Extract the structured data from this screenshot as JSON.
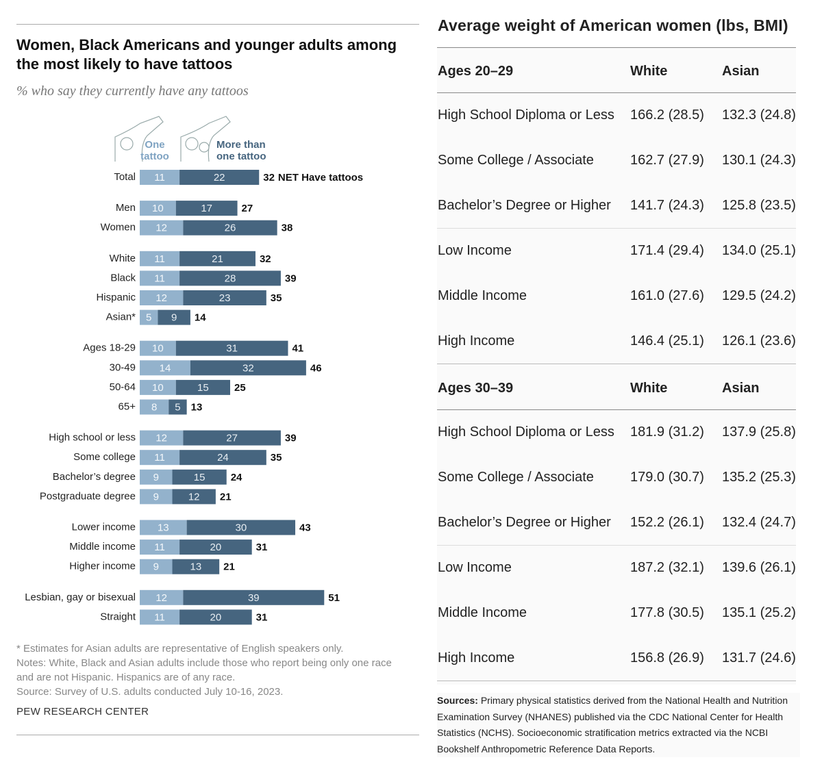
{
  "chart_data": {
    "type": "bar",
    "orientation": "horizontal",
    "stacked": true,
    "title": "Women, Black Americans and younger adults among the most likely to have tattoos",
    "subtitle": "% who say they currently have any tattoos",
    "categories": [
      "Total",
      "Men",
      "Women",
      "White",
      "Black",
      "Hispanic",
      "Asian*",
      "Ages 18-29",
      "30-49",
      "50-64",
      "65+",
      "High school or less",
      "Some college",
      "Bachelor’s degree",
      "Postgraduate degree",
      "Lower income",
      "Middle income",
      "Higher income",
      "Lesbian, gay or bisexual",
      "Straight"
    ],
    "series": [
      {
        "name": "One tattoo",
        "color": "#93b2cc",
        "values": [
          11,
          10,
          12,
          11,
          11,
          12,
          5,
          10,
          14,
          10,
          8,
          12,
          11,
          9,
          9,
          13,
          11,
          9,
          12,
          11
        ]
      },
      {
        "name": "More than one tattoo",
        "color": "#46657f",
        "values": [
          22,
          17,
          26,
          21,
          28,
          23,
          9,
          31,
          32,
          15,
          5,
          27,
          24,
          15,
          12,
          30,
          20,
          13,
          39,
          20
        ]
      }
    ],
    "totals": [
      32,
      27,
      38,
      32,
      39,
      35,
      14,
      41,
      46,
      25,
      13,
      39,
      35,
      24,
      21,
      43,
      31,
      21,
      51,
      31
    ],
    "total_annotation": "NET Have tattoos",
    "notes": [
      "* Estimates for Asian adults are representative of English speakers only.",
      "Notes: White, Black and Asian adults include those who report being only one race and are not Hispanic. Hispanics are of any race.",
      "Source: Survey of U.S. adults conducted July 10-16, 2023."
    ],
    "credit": "PEW RESEARCH CENTER"
  },
  "table": {
    "title": "Average weight of American women (lbs, BMI)",
    "sections": [
      {
        "header": [
          "Ages 20–29",
          "White",
          "Asian"
        ],
        "rows": [
          [
            "High School Diploma or Less",
            "166.2 (28.5)",
            "132.3 (24.8)"
          ],
          [
            "Some College / Associate",
            "162.7 (27.9)",
            "130.1 (24.3)"
          ],
          [
            "Bachelor’s Degree or Higher",
            "141.7 (24.3)",
            "125.8 (23.5)"
          ],
          [
            "Low Income",
            "171.4 (29.4)",
            "134.0 (25.1)"
          ],
          [
            "Middle Income",
            "161.0 (27.6)",
            "129.5 (24.2)"
          ],
          [
            "High Income",
            "146.4 (25.1)",
            "126.1 (23.6)"
          ]
        ]
      },
      {
        "header": [
          "Ages 30–39",
          "White",
          "Asian"
        ],
        "rows": [
          [
            "High School Diploma or Less",
            "181.9 (31.2)",
            "137.9 (25.8)"
          ],
          [
            "Some College / Associate",
            "179.0 (30.7)",
            "135.2 (25.3)"
          ],
          [
            "Bachelor’s Degree or Higher",
            "152.2 (26.1)",
            "132.4 (24.7)"
          ],
          [
            "Low Income",
            "187.2 (32.1)",
            "139.6 (26.1)"
          ],
          [
            "Middle Income",
            "177.8 (30.5)",
            "135.1 (25.2)"
          ],
          [
            "High Income",
            "156.8 (26.9)",
            "131.7 (24.6)"
          ]
        ]
      }
    ],
    "sources": {
      "label": "Sources:",
      "text": "Primary physical statistics derived from the National Health and Nutrition Examination Survey (NHANES) published via the CDC National Center for Health Statistics (NCHS). Socioeconomic stratification metrics extracted via the NCBI Bookshelf Anthropometric Reference Data Reports."
    }
  }
}
